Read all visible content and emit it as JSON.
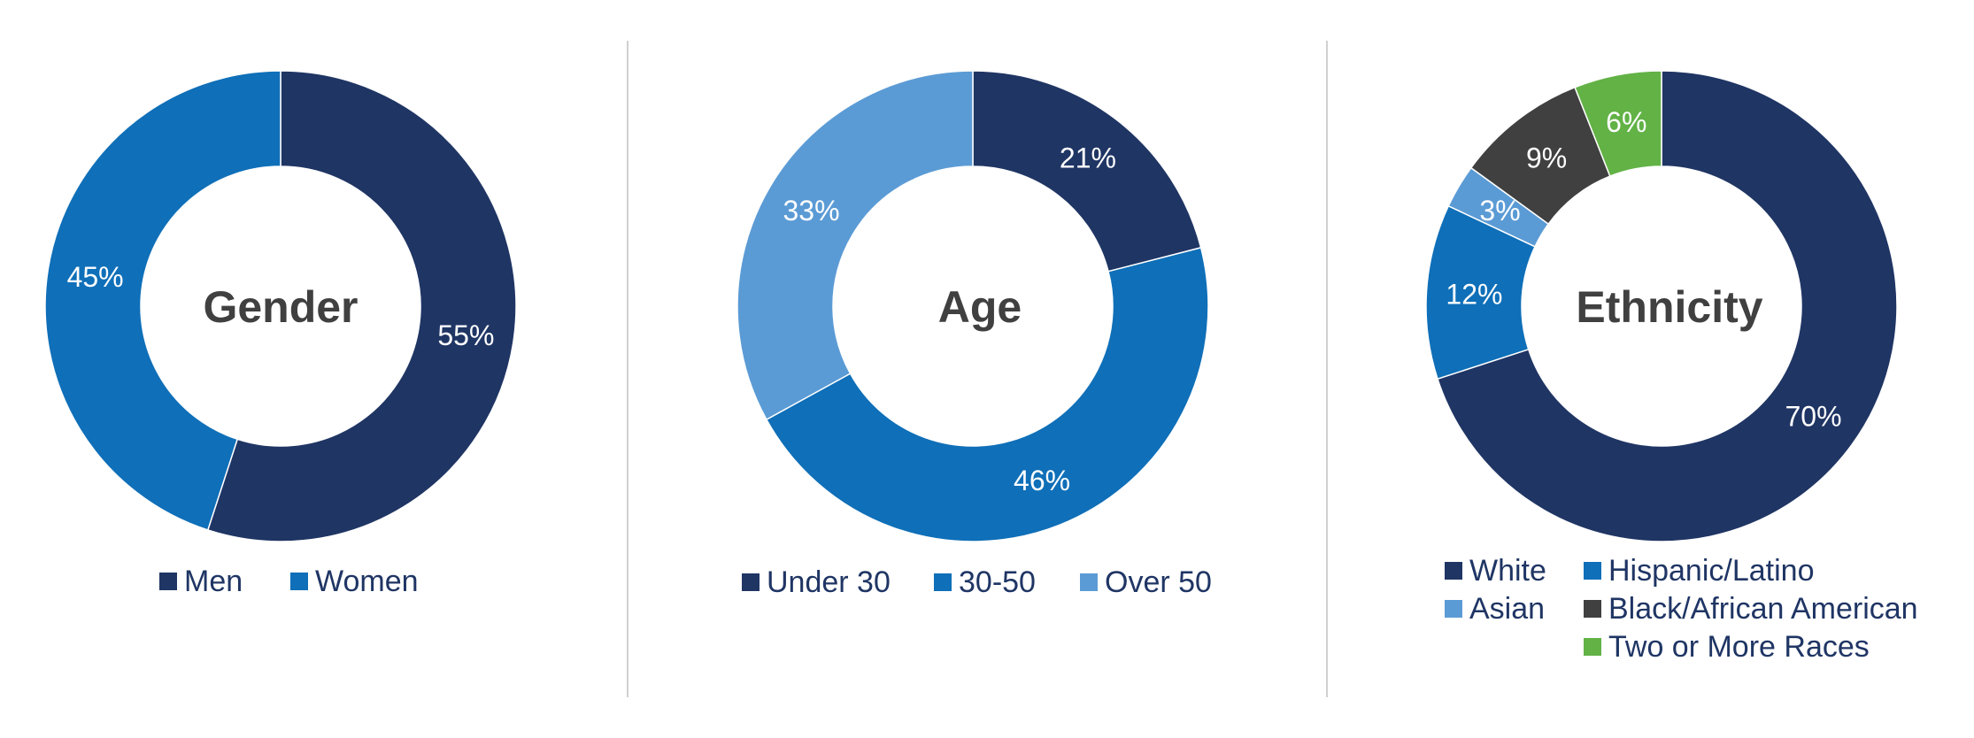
{
  "colors": {
    "navy": "#1f3564",
    "blue": "#0f6fb8",
    "light_blue": "#5b9bd5",
    "dark_gray": "#404040",
    "green": "#62b246",
    "title_text": "#404040",
    "label_text": "#ffffff",
    "legend_text": "#1f3564"
  },
  "chart_data": [
    {
      "type": "pie",
      "title": "Gender",
      "unit": "%",
      "categories": [
        "Men",
        "Women"
      ],
      "values": [
        55,
        45
      ],
      "colors": [
        "#1f3564",
        "#0f6fb8"
      ],
      "legend_position": "bottom"
    },
    {
      "type": "pie",
      "title": "Age",
      "unit": "%",
      "categories": [
        "Under 30",
        "30-50",
        "Over 50"
      ],
      "values": [
        21,
        46,
        33
      ],
      "colors": [
        "#1f3564",
        "#0f6fb8",
        "#5b9bd5"
      ],
      "legend_position": "bottom"
    },
    {
      "type": "pie",
      "title": "Ethnicity",
      "unit": "%",
      "categories": [
        "White",
        "Hispanic/Latino",
        "Asian",
        "Black/African American",
        "Two or More Races"
      ],
      "values": [
        70,
        12,
        3,
        9,
        6
      ],
      "colors": [
        "#1f3564",
        "#0f6fb8",
        "#5b9bd5",
        "#404040",
        "#62b246"
      ],
      "legend_position": "bottom"
    }
  ]
}
